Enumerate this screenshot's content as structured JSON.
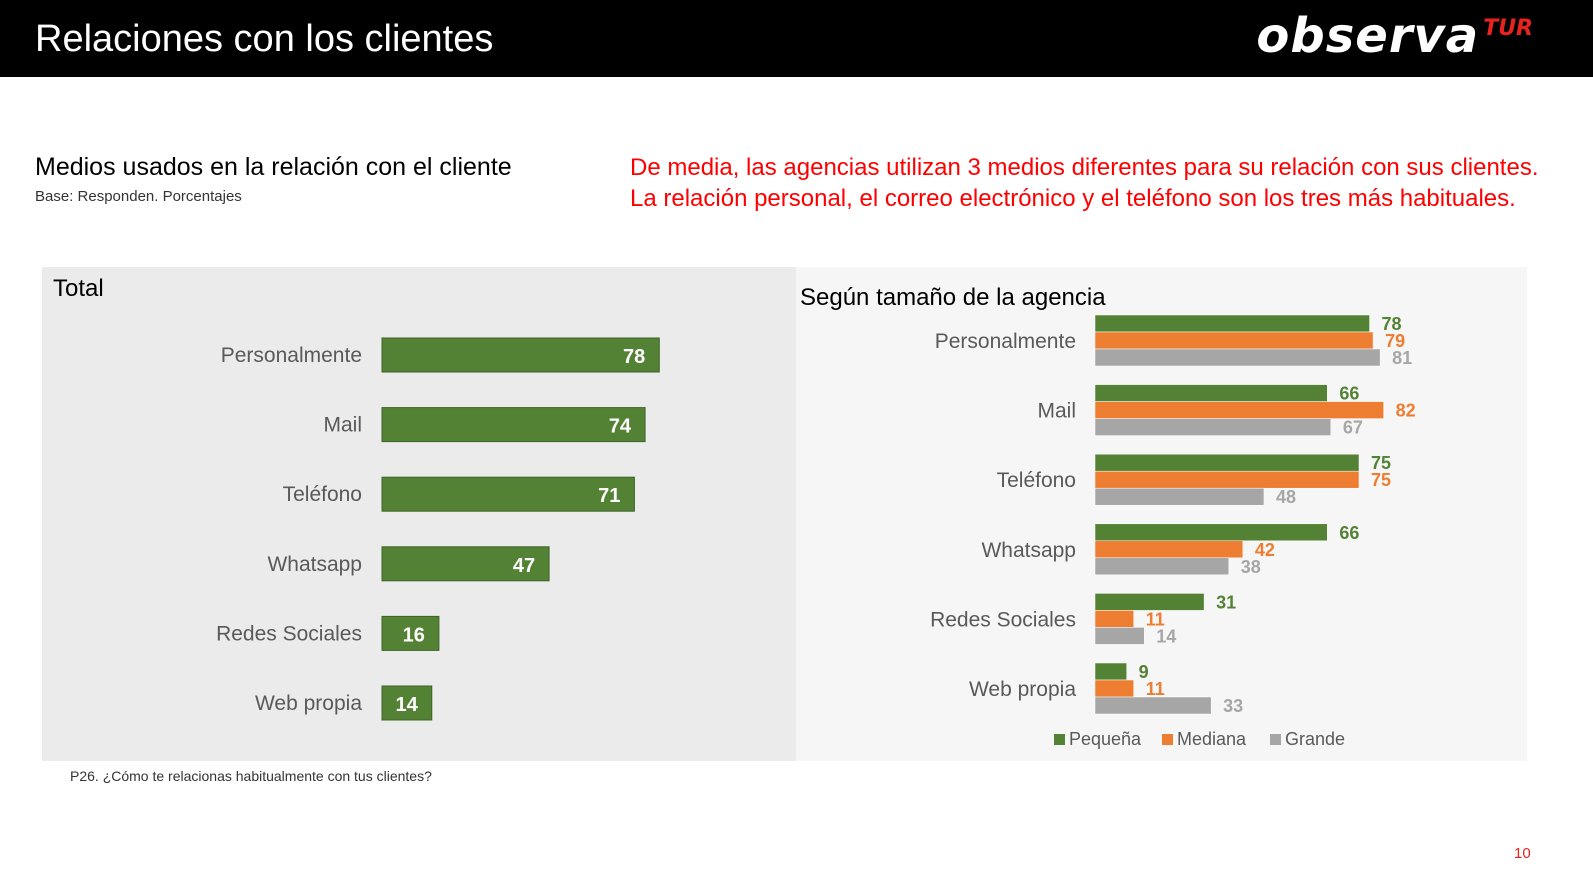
{
  "header": {
    "title": "Relaciones con los clientes",
    "logo_main": "observa",
    "logo_sub": "TUR"
  },
  "subtitle": "Medios usados en la relación con el cliente",
  "base": "Base: Responden. Porcentajes",
  "highlight": "De media, las agencias utilizan 3 medios diferentes para su relación con sus clientes. La relación personal, el correo electrónico y el teléfono son los tres más habituales.",
  "footnote": "P26. ¿Cómo te relacionas habitualmente con tus clientes?",
  "page_number": "10",
  "colors": {
    "green": "#548235",
    "orange": "#ed7d31",
    "gray": "#a6a6a6",
    "label_gray": "#595959",
    "accent_red": "#ff0000"
  },
  "chart_data": [
    {
      "type": "bar",
      "orientation": "horizontal",
      "title": "Total",
      "categories": [
        "Personalmente",
        "Mail",
        "Teléfono",
        "Whatsapp",
        "Redes Sociales",
        "Web propia"
      ],
      "values": [
        78,
        74,
        71,
        47,
        16,
        14
      ],
      "data_labels": "inside-end"
    },
    {
      "type": "bar",
      "orientation": "horizontal",
      "title": "Según tamaño de la agencia",
      "categories": [
        "Personalmente",
        "Mail",
        "Teléfono",
        "Whatsapp",
        "Redes Sociales",
        "Web propia"
      ],
      "series": [
        {
          "name": "Pequeña",
          "color": "#548235",
          "values": [
            78,
            66,
            75,
            66,
            31,
            9
          ]
        },
        {
          "name": "Mediana",
          "color": "#ed7d31",
          "values": [
            79,
            82,
            75,
            42,
            11,
            11
          ]
        },
        {
          "name": "Grande",
          "color": "#a6a6a6",
          "values": [
            81,
            67,
            48,
            38,
            14,
            33
          ]
        }
      ],
      "legend": "bottom",
      "data_labels": "outside-end"
    }
  ]
}
